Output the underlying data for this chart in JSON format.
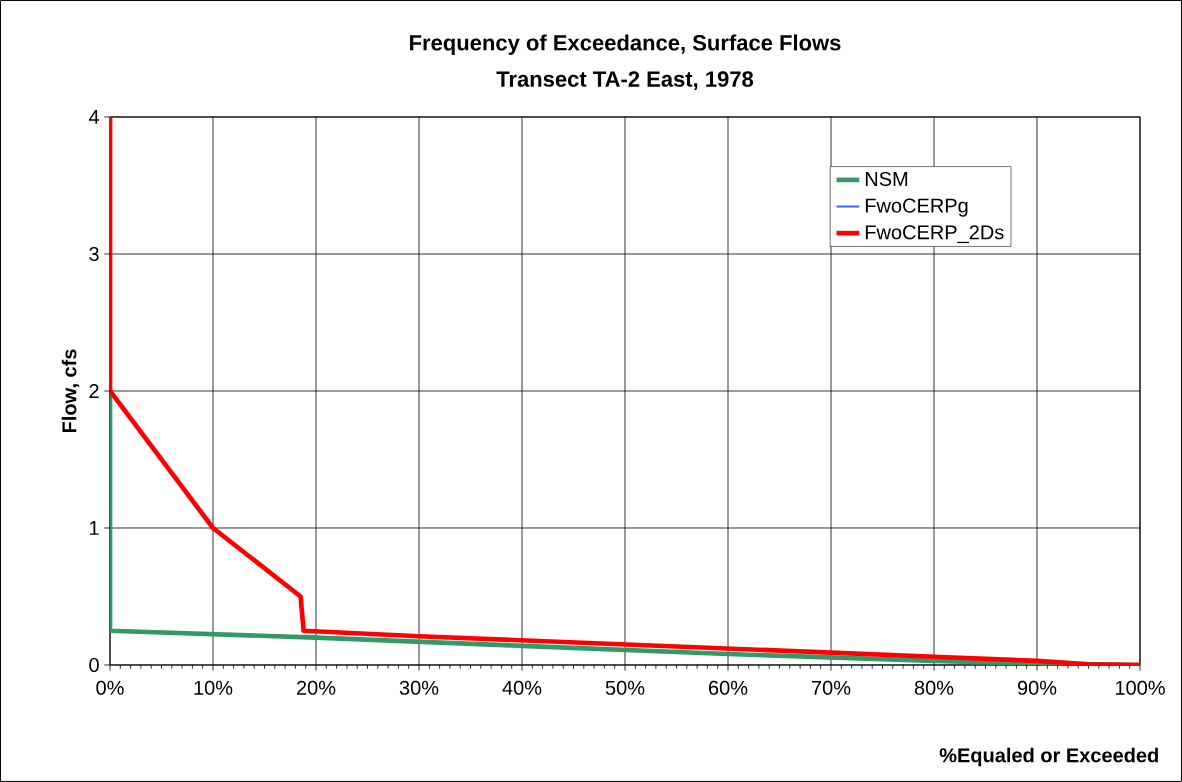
{
  "chart_data": {
    "type": "line",
    "title": "Frequency of Exceedance, Surface Flows",
    "subtitle": "Transect TA-2 East, 1978",
    "xlabel": "%Equaled or Exceeded",
    "ylabel": "Flow, cfs",
    "xlim": [
      0,
      100
    ],
    "xticks": [
      {
        "value": 0,
        "label": "0%"
      },
      {
        "value": 10,
        "label": "10%"
      },
      {
        "value": 20,
        "label": "20%"
      },
      {
        "value": 30,
        "label": "30%"
      },
      {
        "value": 40,
        "label": "40%"
      },
      {
        "value": 50,
        "label": "50%"
      },
      {
        "value": 60,
        "label": "60%"
      },
      {
        "value": 70,
        "label": "70%"
      },
      {
        "value": 80,
        "label": "80%"
      },
      {
        "value": 90,
        "label": "90%"
      },
      {
        "value": 100,
        "label": "100%"
      }
    ],
    "ylim": [
      0,
      4
    ],
    "yticks": [
      0,
      1,
      2,
      3,
      4
    ],
    "grid": true,
    "legend": "right",
    "marker": "none",
    "line_style": "solid",
    "series": [
      {
        "name": "NSM",
        "color": "#339966",
        "x": [
          0,
          0,
          20,
          40,
          60,
          80,
          90,
          100
        ],
        "values": [
          2,
          0.25,
          0.2,
          0.14,
          0.08,
          0.03,
          0.01,
          0
        ]
      },
      {
        "name": "FwoCERPg",
        "color": "#3366ff"
      },
      {
        "name": "FwoCERP_2Ds",
        "color": "#ff0000",
        "x": [
          0,
          0,
          10,
          18.5,
          18.8,
          30,
          50,
          70,
          80,
          90,
          95,
          100
        ],
        "values": [
          4,
          2,
          1,
          0.5,
          0.25,
          0.21,
          0.15,
          0.09,
          0.06,
          0.03,
          0.005,
          0
        ]
      }
    ]
  }
}
